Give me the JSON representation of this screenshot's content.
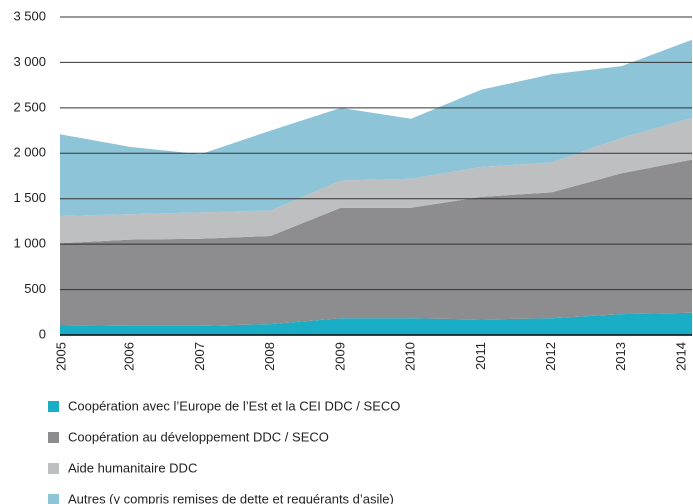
{
  "chart_data": {
    "type": "stacked-area",
    "categories": [
      "2005",
      "2006",
      "2007",
      "2008",
      "2009",
      "2010",
      "2011",
      "2012",
      "2013",
      "2014"
    ],
    "series": [
      {
        "name": "Coopération avec l’Europe de l’Est et la CEI DDC / SECO",
        "color": "#19adc6",
        "values": [
          110,
          100,
          100,
          120,
          185,
          185,
          170,
          185,
          230,
          245
        ]
      },
      {
        "name": "Coopération au développement DDC / SECO",
        "color": "#8d8d8f",
        "values": [
          900,
          950,
          960,
          970,
          1215,
          1215,
          1350,
          1385,
          1550,
          1685
        ]
      },
      {
        "name": "Aide humanitaire DDC",
        "color": "#bebfc1",
        "values": [
          300,
          280,
          290,
          280,
          300,
          320,
          330,
          330,
          390,
          460
        ]
      },
      {
        "name": "Autres (y compris remises de dette et requérants d’asile)",
        "color": "#8ec4d8",
        "values": [
          900,
          740,
          640,
          880,
          800,
          660,
          850,
          970,
          790,
          860
        ]
      }
    ],
    "ylim": [
      0,
      3500
    ],
    "yticks": [
      0,
      500,
      {
        "value": 1000,
        "label": "1 000"
      },
      {
        "value": 1500,
        "label": "1 500"
      },
      {
        "value": 2000,
        "label": "2 000"
      },
      {
        "value": 2500,
        "label": "2 500"
      },
      {
        "value": 3000,
        "label": "3 000"
      },
      {
        "value": 3500,
        "label": "3 500"
      }
    ],
    "grid": true
  }
}
